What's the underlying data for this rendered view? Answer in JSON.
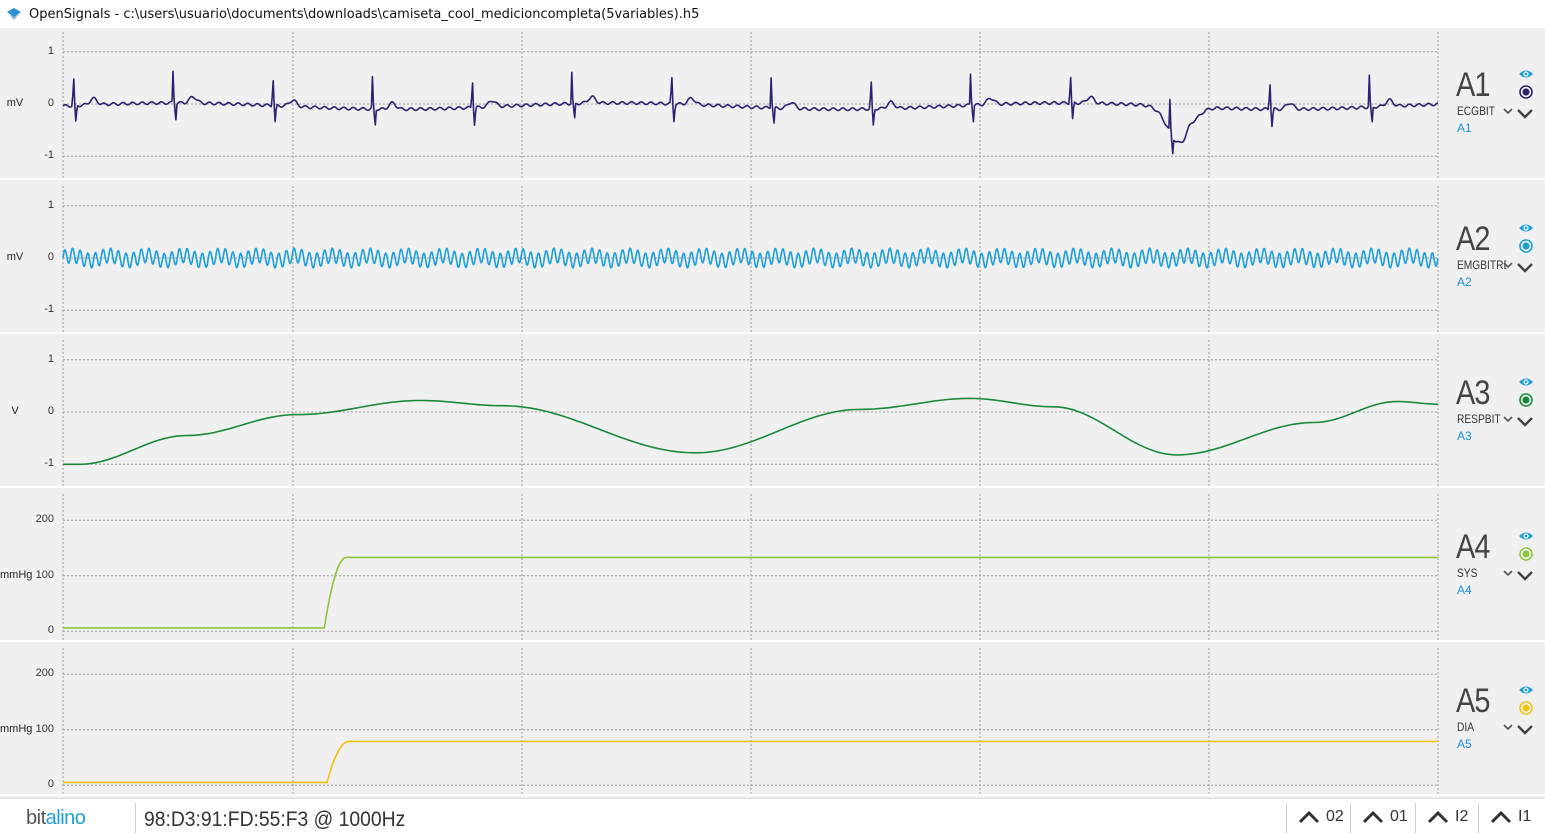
{
  "window": {
    "title": "OpenSignals - c:\\users\\usuario\\documents\\downloads\\camiseta_cool_medicioncompleta(5variables).h5",
    "icon": "opensignals-app-icon"
  },
  "channels": [
    {
      "id": "A1",
      "sensor": "ECGBIT",
      "port": "A1",
      "unit": "mV",
      "color": "#2a2470",
      "ticks": [
        "1",
        "0",
        "-1"
      ],
      "ylim": [
        -1.3,
        1.3
      ]
    },
    {
      "id": "A2",
      "sensor": "EMGBITREV",
      "port": "A2",
      "unit": "mV",
      "color": "#1e9fd8",
      "ticks": [
        "1",
        "0",
        "-1"
      ],
      "ylim": [
        -1.3,
        1.3
      ]
    },
    {
      "id": "A3",
      "sensor": "RESPBIT",
      "port": "A3",
      "unit": "V",
      "color": "#1a8a3a",
      "ticks": [
        "1",
        "0",
        "-1"
      ],
      "ylim": [
        -1.3,
        1.3
      ]
    },
    {
      "id": "A4",
      "sensor": "SYS",
      "port": "A4",
      "unit": "mmHg",
      "color": "#8cc63e",
      "ticks": [
        "200",
        "100",
        "0"
      ],
      "ylim": [
        -5,
        240
      ]
    },
    {
      "id": "A5",
      "sensor": "DIA",
      "port": "A5",
      "unit": "mmHg",
      "color": "#f2c012",
      "ticks": [
        "200",
        "100",
        "0"
      ],
      "ylim": [
        -5,
        240
      ]
    }
  ],
  "status": {
    "logo_main": "bit",
    "logo_accent": "alino",
    "device": "98:D3:91:FD:55:F3 @ 1000Hz"
  },
  "nav_buttons": [
    {
      "label": "02",
      "name": "nav-02-button"
    },
    {
      "label": "01",
      "name": "nav-01-button"
    },
    {
      "label": "I2",
      "name": "nav-i2-button"
    },
    {
      "label": "I1",
      "name": "nav-i1-button"
    }
  ]
}
